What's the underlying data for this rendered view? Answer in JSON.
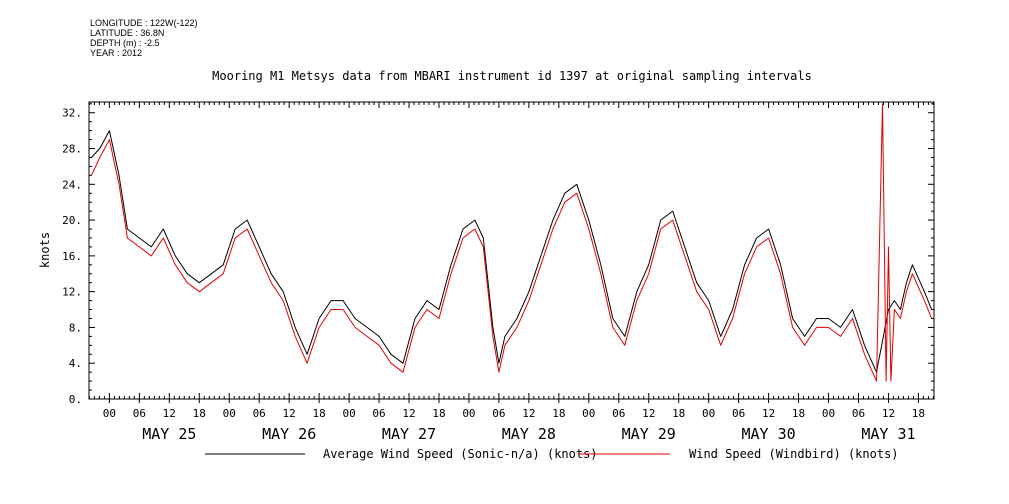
{
  "meta": {
    "longitude": "LONGITUDE : 122W(-122)",
    "latitude": "LATITUDE : 36.8N",
    "depth": "DEPTH (m) : -2.5",
    "year": "YEAR : 2012"
  },
  "chart_data": {
    "type": "line",
    "title": "Mooring M1 Metsys data from MBARI instrument id 1397 at original sampling intervals",
    "xlabel": "",
    "ylabel": "knots",
    "ylim": [
      0,
      33.2
    ],
    "xlim": [
      -0.17,
      6.88
    ],
    "y_ticks": [
      0,
      4,
      8,
      12,
      16,
      20,
      24,
      28,
      32
    ],
    "y_tick_labels": [
      "0.",
      "4.",
      "8.",
      "12.",
      "16.",
      "20.",
      "24.",
      "28.",
      "32."
    ],
    "hour_tick_labels": [
      "00",
      "06",
      "12",
      "18",
      "00",
      "06",
      "12",
      "18",
      "00",
      "06",
      "12",
      "18",
      "00",
      "06",
      "12",
      "18",
      "00",
      "06",
      "12",
      "18",
      "00",
      "06",
      "12",
      "18",
      "00",
      "06",
      "12",
      "18"
    ],
    "day_labels": [
      "MAY 25",
      "MAY 26",
      "MAY 27",
      "MAY 28",
      "MAY 29",
      "MAY 30",
      "MAY 31"
    ],
    "grid": false,
    "legend_position": "bottom",
    "x_units": "days since 2012-05-25 00:00",
    "series": [
      {
        "name": "Average Wind Speed (Sonic-n/a) (knots)",
        "color": "#000000",
        "x": [
          -0.15,
          -0.08,
          0.0,
          0.08,
          0.15,
          0.25,
          0.35,
          0.45,
          0.55,
          0.65,
          0.75,
          0.85,
          0.95,
          1.05,
          1.15,
          1.25,
          1.35,
          1.45,
          1.55,
          1.65,
          1.75,
          1.85,
          1.95,
          2.05,
          2.15,
          2.25,
          2.35,
          2.45,
          2.55,
          2.65,
          2.75,
          2.85,
          2.95,
          3.05,
          3.12,
          3.2,
          3.25,
          3.3,
          3.4,
          3.5,
          3.6,
          3.7,
          3.8,
          3.9,
          4.0,
          4.1,
          4.2,
          4.3,
          4.4,
          4.5,
          4.6,
          4.7,
          4.8,
          4.9,
          5.0,
          5.1,
          5.2,
          5.3,
          5.4,
          5.5,
          5.6,
          5.7,
          5.8,
          5.9,
          6.0,
          6.1,
          6.2,
          6.3,
          6.4,
          6.5,
          6.55,
          6.6,
          6.65,
          6.7,
          6.8,
          6.86
        ],
        "y": [
          27,
          28,
          30,
          25,
          19,
          18,
          17,
          19,
          16,
          14,
          13,
          14,
          15,
          19,
          20,
          17,
          14,
          12,
          8,
          5,
          9,
          11,
          11,
          9,
          8,
          7,
          5,
          4,
          9,
          11,
          10,
          15,
          19,
          20,
          18,
          8,
          4,
          7,
          9,
          12,
          16,
          20,
          23,
          24,
          20,
          15,
          9,
          7,
          12,
          15,
          20,
          21,
          17,
          13,
          11,
          7,
          10,
          15,
          18,
          19,
          15,
          9,
          7,
          9,
          9,
          8,
          10,
          6,
          3,
          10,
          11,
          10,
          13,
          15,
          12,
          10
        ]
      },
      {
        "name": "Wind Speed (Windbird) (knots)",
        "color": "#e00000",
        "x": [
          -0.15,
          -0.08,
          0.0,
          0.08,
          0.15,
          0.25,
          0.35,
          0.45,
          0.55,
          0.65,
          0.75,
          0.85,
          0.95,
          1.05,
          1.15,
          1.25,
          1.35,
          1.45,
          1.55,
          1.65,
          1.75,
          1.85,
          1.95,
          2.05,
          2.15,
          2.25,
          2.35,
          2.45,
          2.55,
          2.65,
          2.75,
          2.85,
          2.95,
          3.05,
          3.12,
          3.2,
          3.25,
          3.3,
          3.4,
          3.5,
          3.6,
          3.7,
          3.8,
          3.9,
          4.0,
          4.1,
          4.2,
          4.3,
          4.4,
          4.5,
          4.6,
          4.7,
          4.8,
          4.9,
          5.0,
          5.1,
          5.2,
          5.3,
          5.4,
          5.5,
          5.6,
          5.7,
          5.8,
          5.9,
          6.0,
          6.1,
          6.2,
          6.3,
          6.4,
          6.45,
          6.48,
          6.5,
          6.52,
          6.55,
          6.6,
          6.65,
          6.7,
          6.8,
          6.86
        ],
        "y": [
          25,
          27,
          29,
          24,
          18,
          17,
          16,
          18,
          15,
          13,
          12,
          13,
          14,
          18,
          19,
          16,
          13,
          11,
          7,
          4,
          8,
          10,
          10,
          8,
          7,
          6,
          4,
          3,
          8,
          10,
          9,
          14,
          18,
          19,
          17,
          7,
          3,
          6,
          8,
          11,
          15,
          19,
          22,
          23,
          19,
          14,
          8,
          6,
          11,
          14,
          19,
          20,
          16,
          12,
          10,
          6,
          9,
          14,
          17,
          18,
          14,
          8,
          6,
          8,
          8,
          7,
          9,
          5,
          2,
          33,
          2,
          17,
          2,
          10,
          9,
          12,
          14,
          11,
          9
        ]
      }
    ]
  }
}
